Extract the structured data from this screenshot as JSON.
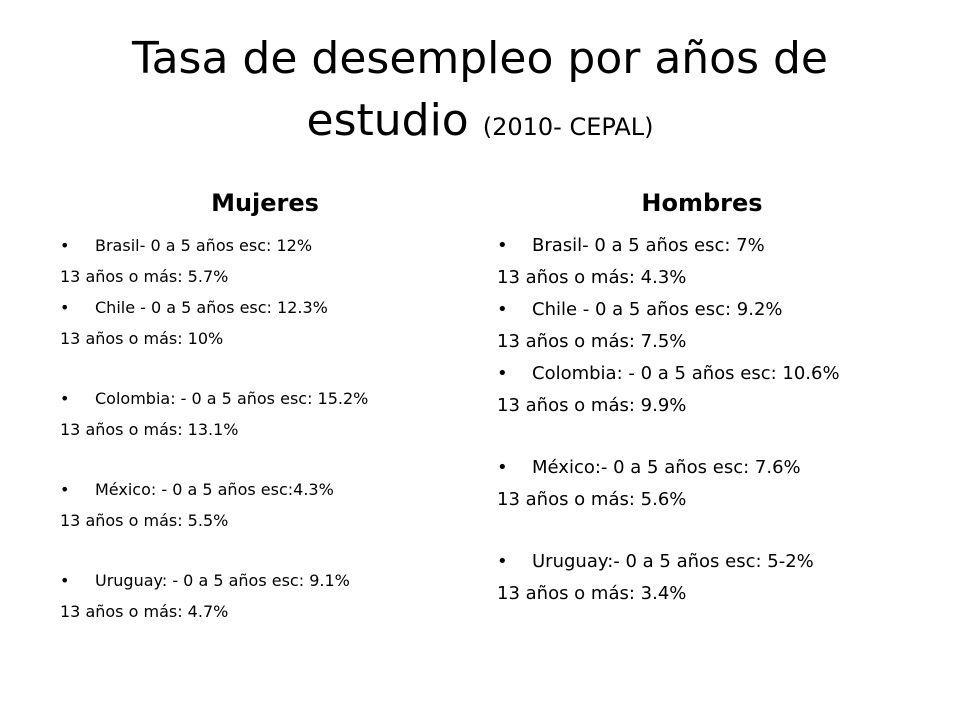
{
  "title": {
    "main": "Tasa de desempleo por años de estudio",
    "sub": "(2010- CEPAL)"
  },
  "mujeres": {
    "header": "Mujeres",
    "entries": [
      {
        "bullet": "Brasil- 0 a 5 años esc: 12%",
        "line": "13 años o más: 5.7%"
      },
      {
        "bullet": "Chile - 0 a 5 años esc: 12.3%",
        "line": "13 años o más: 10%"
      },
      {
        "bullet": "Colombia: - 0 a 5 años esc: 15.2%",
        "line": "13 años o más: 13.1%"
      },
      {
        "bullet": "México: - 0 a 5 años esc:4.3%",
        "line": "13 años o más: 5.5%"
      },
      {
        "bullet": "Uruguay: - 0 a 5 años esc: 9.1%",
        "line": "13 años o más: 4.7%"
      }
    ]
  },
  "hombres": {
    "header": "Hombres",
    "entries": [
      {
        "bullet": "Brasil- 0 a 5 años esc: 7%",
        "line": "13 años o más: 4.3%"
      },
      {
        "bullet": "Chile - 0 a 5 años esc: 9.2%",
        "line": "13 años o más: 7.5%"
      },
      {
        "bullet": "Colombia: - 0 a 5 años esc: 10.6%",
        "line": "13 años o más: 9.9%"
      },
      {
        "bullet": "México:- 0 a 5 años esc: 7.6%",
        "line": "13 años o más: 5.6%"
      },
      {
        "bullet": "Uruguay:- 0 a 5 años esc: 5-2%",
        "line": "13 años o más: 3.4%"
      }
    ]
  }
}
